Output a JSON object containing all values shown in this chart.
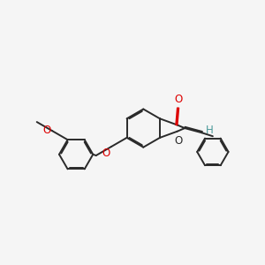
{
  "background_color": "#f5f5f5",
  "bond_color": "#2a2a2a",
  "oxygen_color": "#dd0000",
  "hydrogen_color": "#4a9999",
  "bond_width": 1.4,
  "dbo": 0.055,
  "font_size": 8.5,
  "fig_width": 3.0,
  "fig_height": 3.0,
  "dpi": 100,
  "xlim": [
    0,
    12
  ],
  "ylim": [
    0,
    12
  ]
}
